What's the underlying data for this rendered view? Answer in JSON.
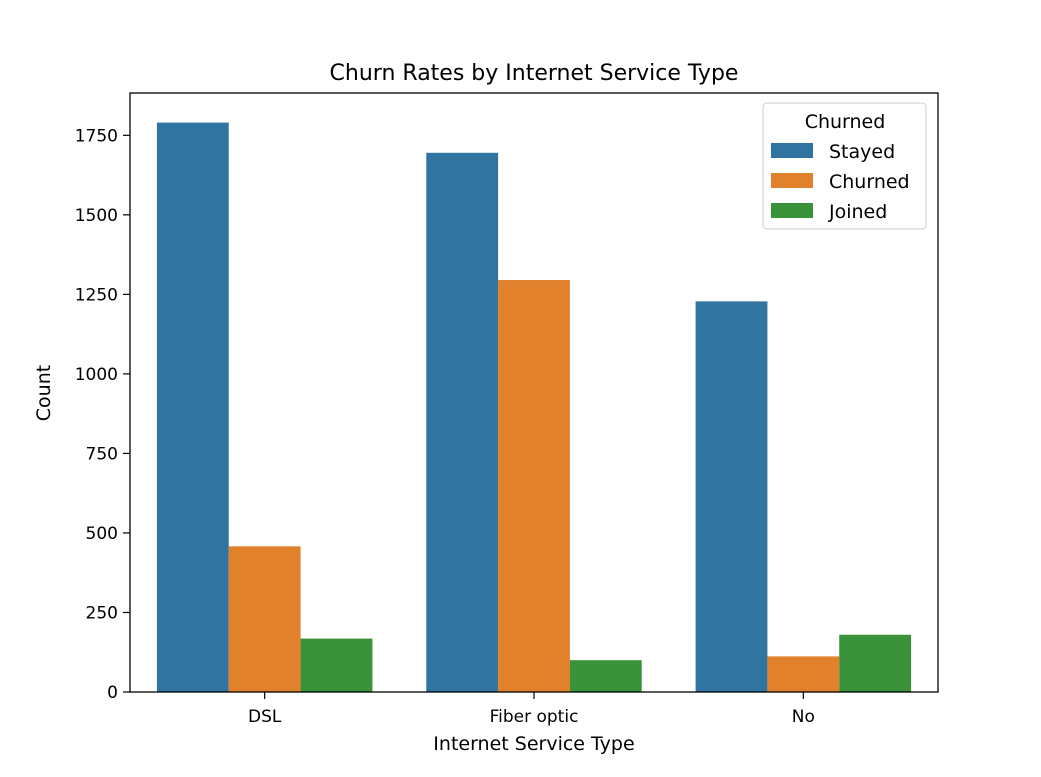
{
  "chart_data": {
    "type": "bar",
    "title": "Churn Rates by Internet Service Type",
    "xlabel": "Internet Service Type",
    "ylabel": "Count",
    "categories": [
      "DSL",
      "Fiber optic",
      "No"
    ],
    "series": [
      {
        "name": "Stayed",
        "color": "#3274a1",
        "values": [
          1790,
          1695,
          1228
        ]
      },
      {
        "name": "Churned",
        "color": "#e1812c",
        "values": [
          458,
          1295,
          112
        ]
      },
      {
        "name": "Joined",
        "color": "#3a923a",
        "values": [
          168,
          100,
          180
        ]
      }
    ],
    "ylim": [
      0,
      1883
    ],
    "yticks": [
      "0",
      "250",
      "500",
      "750",
      "1000",
      "1250",
      "1500",
      "1750"
    ],
    "ytick_values": [
      0,
      250,
      500,
      750,
      1000,
      1250,
      1500,
      1750
    ],
    "legend": {
      "title": "Churned",
      "position": "top-right"
    },
    "grid": false
  }
}
